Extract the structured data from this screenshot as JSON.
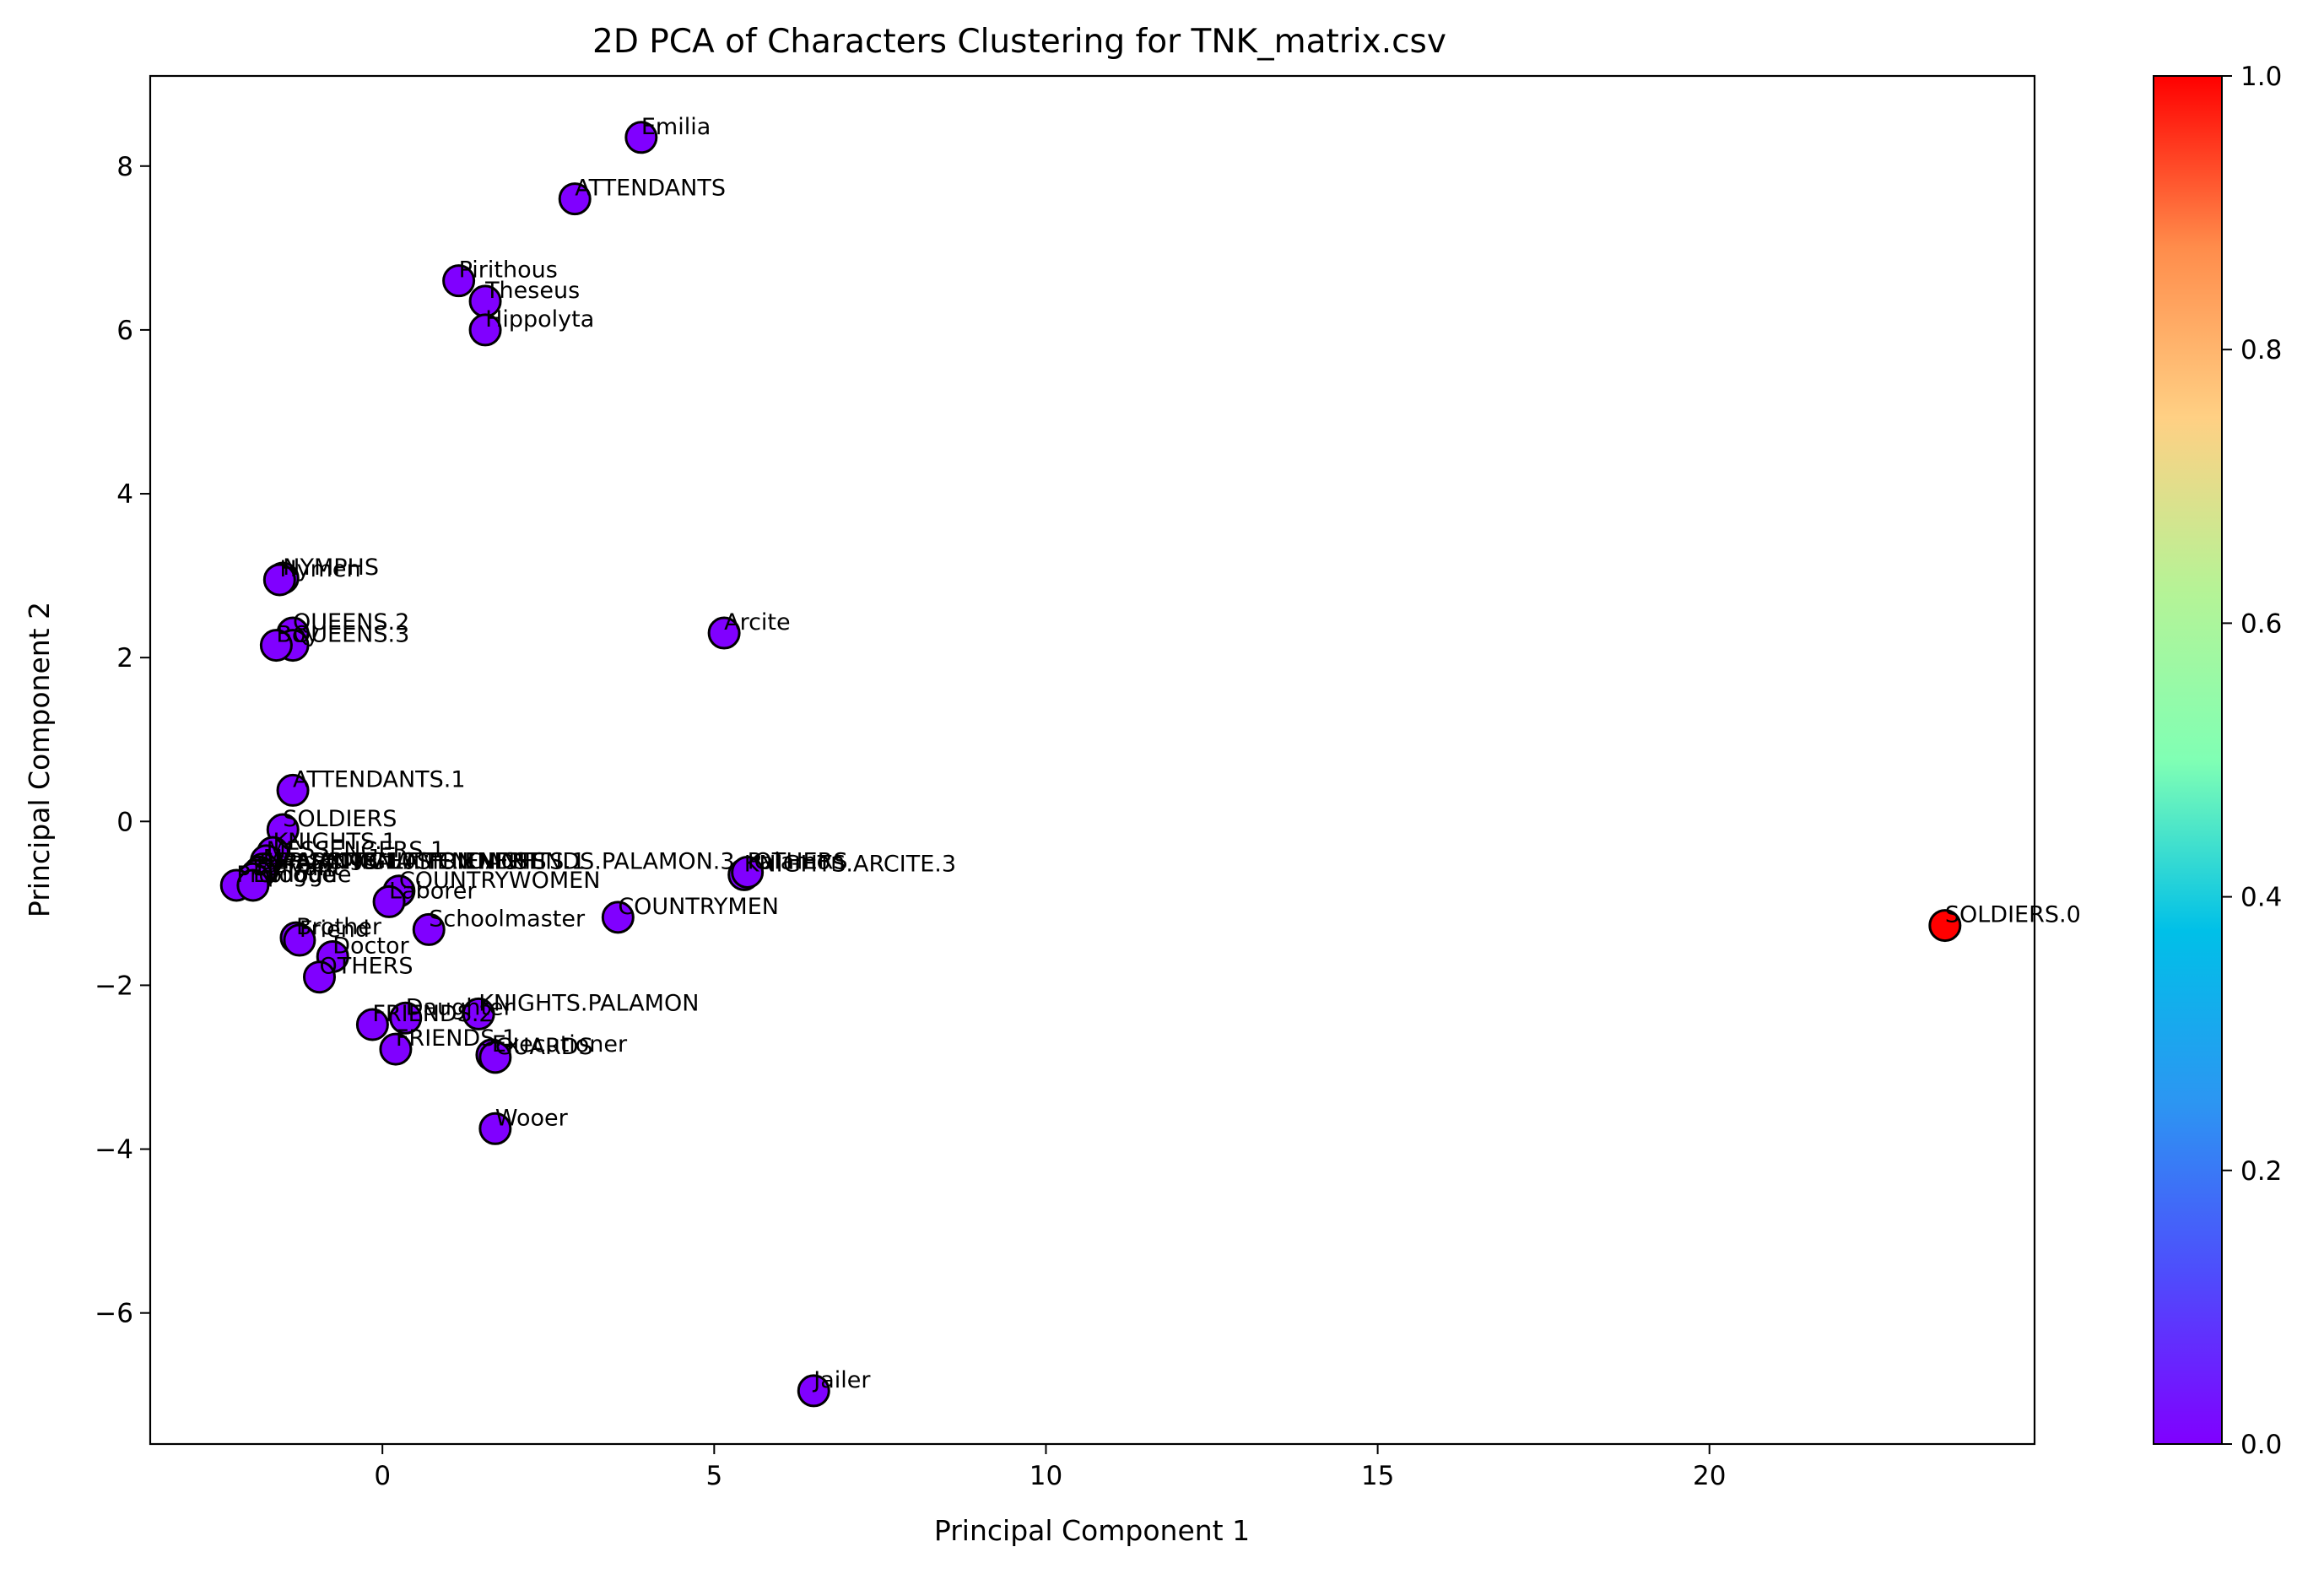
{
  "chart_data": {
    "type": "scatter",
    "title": "2D PCA of Characters Clustering for TNK_matrix.csv",
    "xlabel": "Principal Component 1",
    "ylabel": "Principal Component 2",
    "xlim": [
      -3.5,
      24.9
    ],
    "ylim": [
      -7.6,
      9.1
    ],
    "xticks": [
      0,
      5,
      10,
      15,
      20
    ],
    "yticks": [
      -6,
      -4,
      -2,
      0,
      2,
      4,
      6,
      8
    ],
    "grid": false,
    "colormap": "rainbow",
    "colorbar": {
      "range": [
        0,
        1
      ],
      "ticks": [
        "0.0",
        "0.2",
        "0.4",
        "0.6",
        "0.8",
        "1.0"
      ]
    },
    "marker_edge_color": "#000000",
    "points": [
      {
        "label": "Emilia",
        "x": 3.9,
        "y": 8.35,
        "c": 0
      },
      {
        "label": "ATTENDANTS",
        "x": 2.9,
        "y": 7.6,
        "c": 0
      },
      {
        "label": "Pirithous",
        "x": 1.15,
        "y": 6.6,
        "c": 0
      },
      {
        "label": "Theseus",
        "x": 1.55,
        "y": 6.35,
        "c": 0
      },
      {
        "label": "Hippolyta",
        "x": 1.55,
        "y": 6.0,
        "c": 0
      },
      {
        "label": "NYMPHS",
        "x": -1.5,
        "y": 2.97,
        "c": 0
      },
      {
        "label": "Hymen",
        "x": -1.55,
        "y": 2.95,
        "c": 0
      },
      {
        "label": "QUEENS.2",
        "x": -1.35,
        "y": 2.3,
        "c": 0
      },
      {
        "label": "QUEENS.3",
        "x": -1.35,
        "y": 2.15,
        "c": 0
      },
      {
        "label": "Boy",
        "x": -1.6,
        "y": 2.15,
        "c": 0
      },
      {
        "label": "Arcite",
        "x": 5.15,
        "y": 2.3,
        "c": 0
      },
      {
        "label": "ATTENDANTS.1",
        "x": -1.35,
        "y": 0.38,
        "c": 0
      },
      {
        "label": "SOLDIERS",
        "x": -1.5,
        "y": -0.1,
        "c": 0
      },
      {
        "label": "KNIGHTS.1",
        "x": -1.65,
        "y": -0.38,
        "c": 0
      },
      {
        "label": "MESSENGERS.1",
        "x": -1.75,
        "y": -0.48,
        "c": 0
      },
      {
        "label": "Messenger",
        "x": -1.8,
        "y": -0.58,
        "c": 0
      },
      {
        "label": "SERVANTS",
        "x": -1.85,
        "y": -0.62,
        "c": 0
      },
      {
        "label": "Herald",
        "x": -1.9,
        "y": -0.66,
        "c": 0
      },
      {
        "label": "Servant",
        "x": -1.95,
        "y": -0.7,
        "c": 0
      },
      {
        "label": "Prologue",
        "x": -2.2,
        "y": -0.78,
        "c": 0
      },
      {
        "label": "Epilogue",
        "x": -1.95,
        "y": -0.78,
        "c": 0
      },
      {
        "label": "KNIGHTS.ARCITE.3",
        "x": 5.45,
        "y": -0.65,
        "c": 0
      },
      {
        "label": "Palamon",
        "x": 5.5,
        "y": -0.62,
        "c": 0
      },
      {
        "label": "COUNTRYWOMEN",
        "x": 0.25,
        "y": -0.85,
        "c": 0
      },
      {
        "label": "Laborer",
        "x": 0.1,
        "y": -0.98,
        "c": 0
      },
      {
        "label": "COUNTRYMEN",
        "x": 3.55,
        "y": -1.17,
        "c": 0
      },
      {
        "label": "Schoolmaster",
        "x": 0.7,
        "y": -1.32,
        "c": 0
      },
      {
        "label": "Brother",
        "x": -1.3,
        "y": -1.42,
        "c": 0
      },
      {
        "label": "Friend",
        "x": -1.25,
        "y": -1.45,
        "c": 0
      },
      {
        "label": "Doctor",
        "x": -0.75,
        "y": -1.65,
        "c": 0
      },
      {
        "label": "OTHERS",
        "x": -0.95,
        "y": -1.9,
        "c": 0
      },
      {
        "label": "KNIGHTS.PALAMON",
        "x": 1.45,
        "y": -2.35,
        "c": 0
      },
      {
        "label": "Daughter",
        "x": 0.35,
        "y": -2.4,
        "c": 0
      },
      {
        "label": "FRIENDS.2",
        "x": -0.15,
        "y": -2.48,
        "c": 0
      },
      {
        "label": "FRIENDS.1",
        "x": 0.2,
        "y": -2.78,
        "c": 0
      },
      {
        "label": "Executioner",
        "x": 1.65,
        "y": -2.85,
        "c": 0
      },
      {
        "label": "GUARDS",
        "x": 1.7,
        "y": -2.88,
        "c": 0
      },
      {
        "label": "Wooer",
        "x": 1.7,
        "y": -3.75,
        "c": 0
      },
      {
        "label": "Jailer",
        "x": 6.5,
        "y": -6.95,
        "c": 0
      },
      {
        "label": "SOLDIERS.0",
        "x": 23.55,
        "y": -1.27,
        "c": 1
      }
    ],
    "clutter_labels": [
      {
        "label": "PALAMON.0",
        "x": -1.5,
        "y": -0.62
      },
      {
        "label": "ARCITE.1",
        "x": -1.3,
        "y": -0.62
      },
      {
        "label": "KNIGHTS",
        "x": -0.8,
        "y": -0.62
      },
      {
        "label": "PALAMON",
        "x": -0.3,
        "y": -0.62
      },
      {
        "label": "ATTENDANTS",
        "x": 0.2,
        "y": -0.62
      },
      {
        "label": "FRIENDS",
        "x": 0.7,
        "y": -0.62
      },
      {
        "label": "KNIGHTS.1",
        "x": 1.2,
        "y": -0.62
      },
      {
        "label": "FRIENDS.PALAMON.3",
        "x": 1.7,
        "y": -0.62
      },
      {
        "label": "OTHERS",
        "x": 5.6,
        "y": -0.62
      }
    ]
  }
}
